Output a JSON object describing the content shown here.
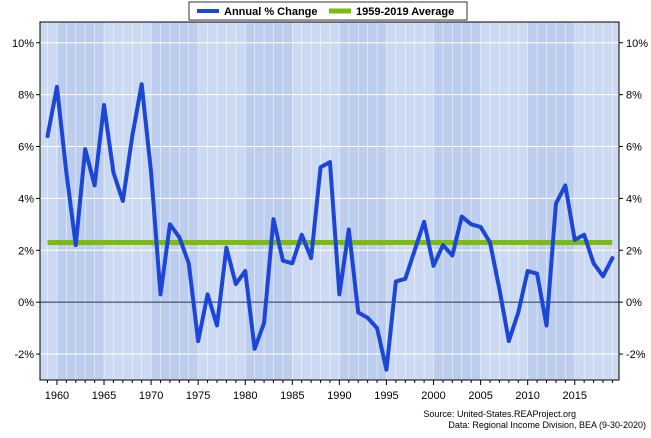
{
  "chart_data": {
    "type": "line",
    "legend": {
      "position": "top-center",
      "items": [
        {
          "label": "Annual % Change",
          "color": "#1c46d6"
        },
        {
          "label": "1959-2019 Average",
          "color": "#7dbb10"
        }
      ]
    },
    "x_ticks": [
      "1960",
      "1965",
      "1970",
      "1975",
      "1980",
      "1985",
      "1990",
      "1995",
      "2000",
      "2005",
      "2010",
      "2015"
    ],
    "y_ticks_left": [
      "-2%",
      "0%",
      "2%",
      "4%",
      "6%",
      "8%",
      "10%"
    ],
    "y_ticks_right": [
      "-2%",
      "0%",
      "2%",
      "4%",
      "6%",
      "8%",
      "10%"
    ],
    "xlim": [
      1958.2,
      2019.7
    ],
    "ylim": [
      -3,
      10.8
    ],
    "grid": true,
    "series": [
      {
        "name": "Annual % Change",
        "color": "#1c46d6",
        "x": [
          1959,
          1960,
          1961,
          1962,
          1963,
          1964,
          1965,
          1966,
          1967,
          1968,
          1969,
          1970,
          1971,
          1972,
          1973,
          1974,
          1975,
          1976,
          1977,
          1978,
          1979,
          1980,
          1981,
          1982,
          1983,
          1984,
          1985,
          1986,
          1987,
          1988,
          1989,
          1990,
          1991,
          1992,
          1993,
          1994,
          1995,
          1996,
          1997,
          1998,
          1999,
          2000,
          2001,
          2002,
          2003,
          2004,
          2005,
          2006,
          2007,
          2008,
          2009,
          2010,
          2011,
          2012,
          2013,
          2014,
          2015,
          2016,
          2017,
          2018,
          2019
        ],
        "values": [
          6.4,
          8.3,
          5.0,
          2.2,
          5.9,
          4.5,
          7.6,
          5.0,
          3.9,
          6.4,
          8.4,
          5.0,
          0.3,
          3.0,
          2.5,
          1.5,
          -1.5,
          0.3,
          -0.9,
          2.1,
          0.7,
          1.2,
          -1.8,
          -0.8,
          3.2,
          1.6,
          1.5,
          2.6,
          1.7,
          5.2,
          5.4,
          0.3,
          2.8,
          -0.4,
          -0.6,
          -1.0,
          -2.6,
          0.8,
          0.9,
          2.0,
          3.1,
          1.4,
          2.2,
          1.8,
          3.3,
          3.0,
          2.9,
          2.3,
          0.5,
          -1.5,
          -0.4,
          1.2,
          1.1,
          -0.9,
          3.8,
          4.5,
          2.4,
          2.6,
          1.5,
          1.0,
          1.7
        ]
      },
      {
        "name": "1959-2019 Average",
        "color": "#7dbb10",
        "x": [
          1959,
          2019
        ],
        "values": [
          2.3,
          2.3
        ]
      }
    ],
    "source_lines": [
      "Source: United-States.REAProject.org",
      "Data: Regional Income Division, BEA (9-30-2020)"
    ]
  }
}
